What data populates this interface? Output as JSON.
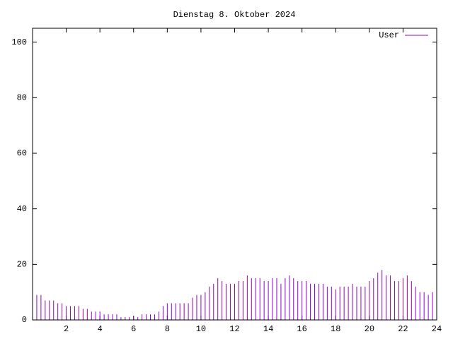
{
  "chart_data": {
    "type": "impulse",
    "title": "Dienstag 8. Oktober 2024",
    "x": [
      0,
      0.25,
      0.5,
      0.75,
      1,
      1.25,
      1.5,
      1.75,
      2,
      2.25,
      2.5,
      2.75,
      3,
      3.25,
      3.5,
      3.75,
      4,
      4.25,
      4.5,
      4.75,
      5,
      5.25,
      5.5,
      5.75,
      6,
      6.25,
      6.5,
      6.75,
      7,
      7.25,
      7.5,
      7.75,
      8,
      8.25,
      8.5,
      8.75,
      9,
      9.25,
      9.5,
      9.75,
      10,
      10.25,
      10.5,
      10.75,
      11,
      11.25,
      11.5,
      11.75,
      12,
      12.25,
      12.5,
      12.75,
      13,
      13.25,
      13.5,
      13.75,
      14,
      14.25,
      14.5,
      14.75,
      15,
      15.25,
      15.5,
      15.75,
      16,
      16.25,
      16.5,
      16.75,
      17,
      17.25,
      17.5,
      17.75,
      18,
      18.25,
      18.5,
      18.75,
      19,
      19.25,
      19.5,
      19.75,
      20,
      20.25,
      20.5,
      20.75,
      21,
      21.25,
      21.5,
      21.75,
      22,
      22.25,
      22.5,
      22.75,
      23,
      23.25,
      23.5,
      23.75
    ],
    "series": [
      {
        "name": "User",
        "color": "#9400d3",
        "values": [
          10,
          9,
          9,
          7,
          7,
          7,
          6,
          6,
          5,
          5,
          5,
          5,
          4,
          4,
          3,
          3,
          3,
          2,
          2,
          2,
          2,
          1,
          1,
          1,
          1,
          1,
          2,
          2,
          2,
          2,
          3,
          5,
          6,
          6,
          6,
          6,
          6,
          6,
          8,
          9,
          9,
          10,
          12,
          13,
          15,
          14,
          13,
          13,
          13,
          14,
          14,
          16,
          15,
          15,
          15,
          14,
          14,
          15,
          15,
          13,
          15,
          16,
          15,
          14,
          14,
          14,
          13,
          13,
          13,
          13,
          12,
          12,
          11,
          12,
          12,
          12,
          13,
          12,
          12,
          12,
          14,
          15,
          17,
          18,
          16,
          16,
          14,
          14,
          15,
          16,
          14,
          12,
          10,
          10,
          9,
          10
        ]
      }
    ],
    "xlim": [
      0,
      24
    ],
    "xticks": [
      2,
      4,
      6,
      8,
      10,
      12,
      14,
      16,
      18,
      20,
      22,
      24
    ],
    "ylim": [
      0,
      105
    ],
    "yticks": [
      0,
      20,
      40,
      60,
      80,
      100
    ],
    "grid": false,
    "legend": "top-right"
  }
}
